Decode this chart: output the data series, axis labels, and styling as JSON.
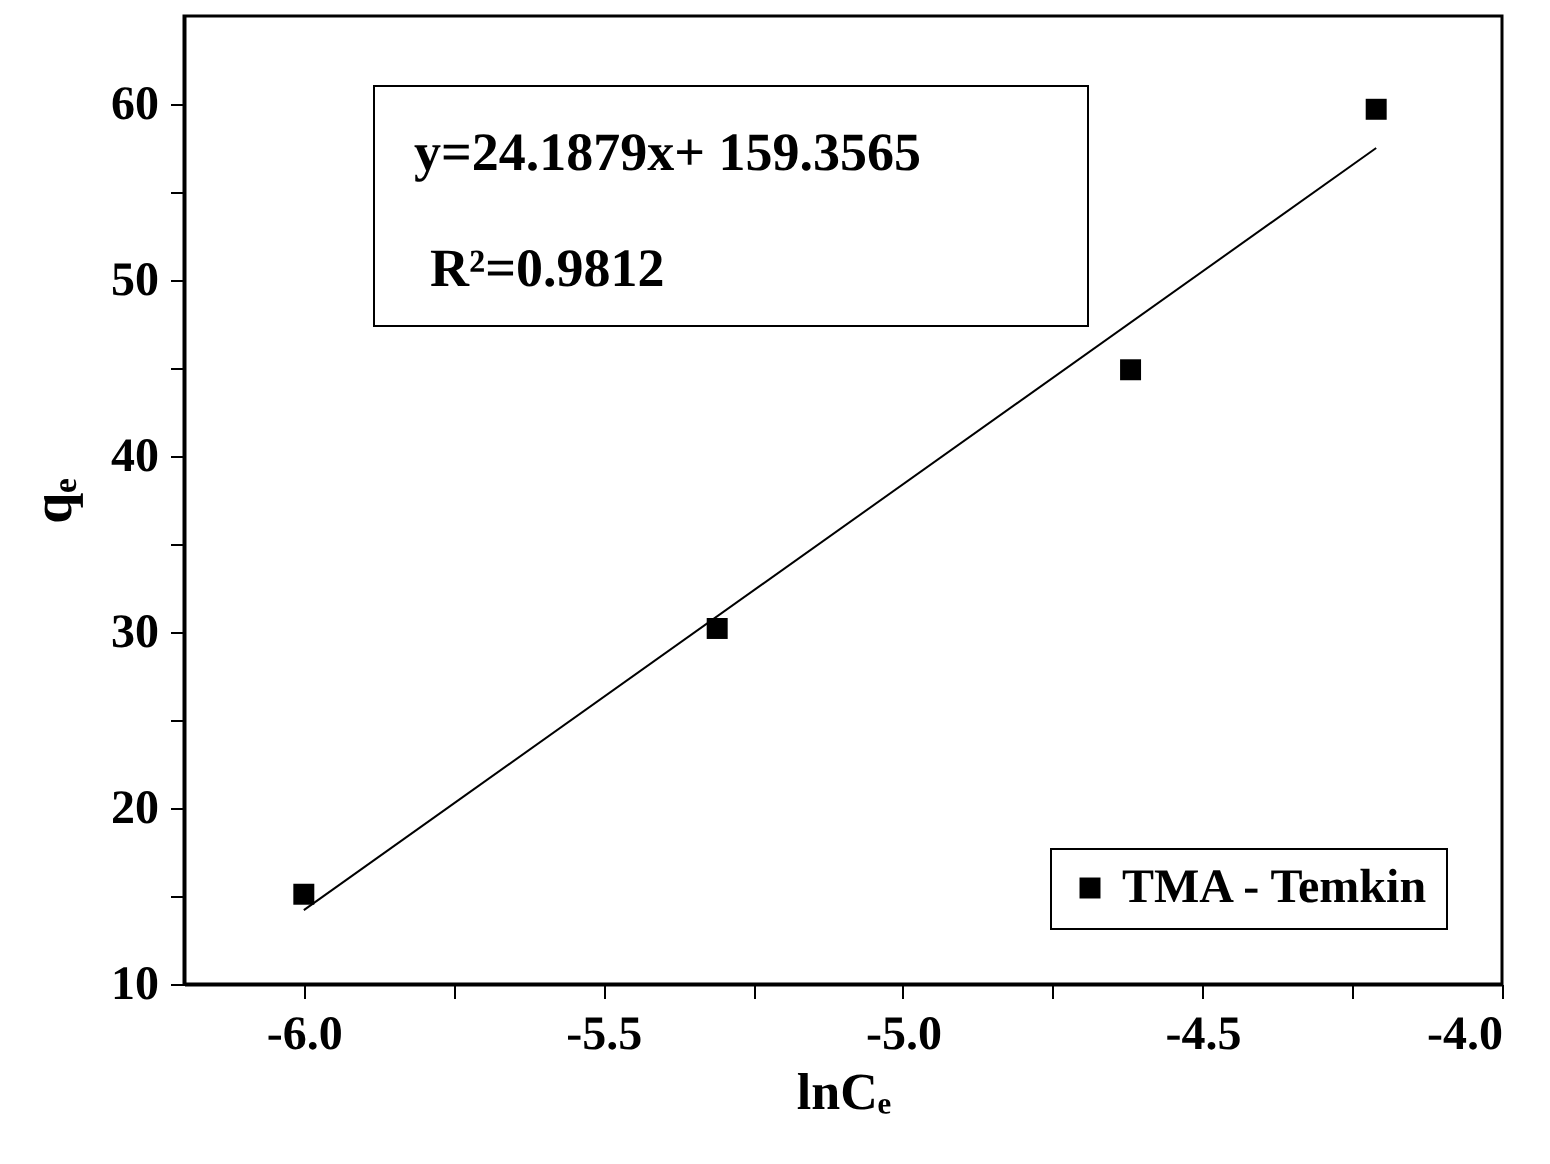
{
  "chart_data": {
    "type": "scatter",
    "xlabel": "lnCₑ",
    "ylabel": "qₑ",
    "annotations": [
      "y=24.1879x+ 159.3565",
      "R²=0.9812"
    ],
    "xlim": [
      -6.2,
      -4.0
    ],
    "xticks": [
      {
        "value": -6,
        "label": "-6.0"
      },
      {
        "value": -5.75,
        "label": null
      },
      -5.5,
      {
        "value": -5.25,
        "label": null
      },
      {
        "value": -5,
        "label": "-5.0"
      },
      {
        "value": -4.75,
        "label": null
      },
      -4.5,
      {
        "value": -4.25,
        "label": null
      },
      {
        "value": -4,
        "label": "-4.0"
      }
    ],
    "ylim": [
      10,
      65
    ],
    "yticks": [
      10,
      {
        "value": 15,
        "label": null
      },
      20,
      {
        "value": 25,
        "label": null
      },
      30,
      {
        "value": 35,
        "label": null
      },
      40,
      {
        "value": 45,
        "label": null
      },
      50,
      {
        "value": 55,
        "label": null
      },
      60
    ],
    "marker": "square",
    "grid": false,
    "legend": "bottom right",
    "series": [
      {
        "name": "TMA - Temkin",
        "color": "#000000",
        "x": [
          -6.0,
          -5.31,
          -4.62,
          -4.21
        ],
        "values": [
          15.1,
          30.2,
          44.9,
          59.7
        ]
      },
      {
        "type": "line",
        "marker": "none",
        "color": "#000000",
        "x": [
          -6.0,
          -4.21
        ],
        "values": [
          14.2,
          57.5
        ]
      }
    ]
  }
}
